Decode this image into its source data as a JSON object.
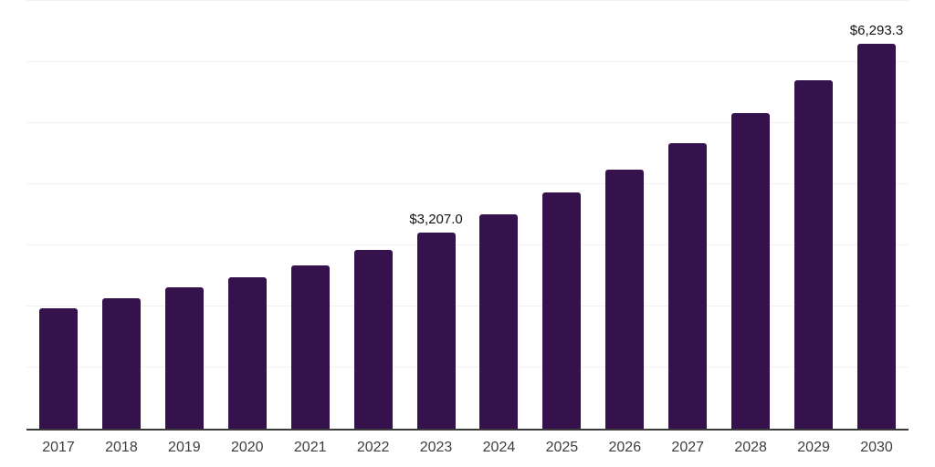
{
  "chart_data": {
    "type": "bar",
    "title": "",
    "xlabel": "",
    "ylabel": "",
    "categories": [
      "2017",
      "2018",
      "2019",
      "2020",
      "2021",
      "2022",
      "2023",
      "2024",
      "2025",
      "2026",
      "2027",
      "2028",
      "2029",
      "2030"
    ],
    "values": [
      1975,
      2140,
      2310,
      2475,
      2675,
      2920,
      3207.0,
      3510,
      3865,
      4240,
      4665,
      5160,
      5705,
      6293.3
    ],
    "data_labels": [
      {
        "year": "2023",
        "text": "$3,207.0"
      },
      {
        "year": "2030",
        "text": "$6,293.3"
      }
    ],
    "ylim": [
      0,
      7000
    ],
    "gridline_step": 1000,
    "grid": "horizontal-only",
    "legend": "none",
    "colors": {
      "bar": "#36124C",
      "gridline": "#f2f2f2",
      "axis_line": "#3a3a3a",
      "tick_label": "#3d3d3d",
      "data_label": "#121212",
      "background": "#ffffff"
    }
  }
}
